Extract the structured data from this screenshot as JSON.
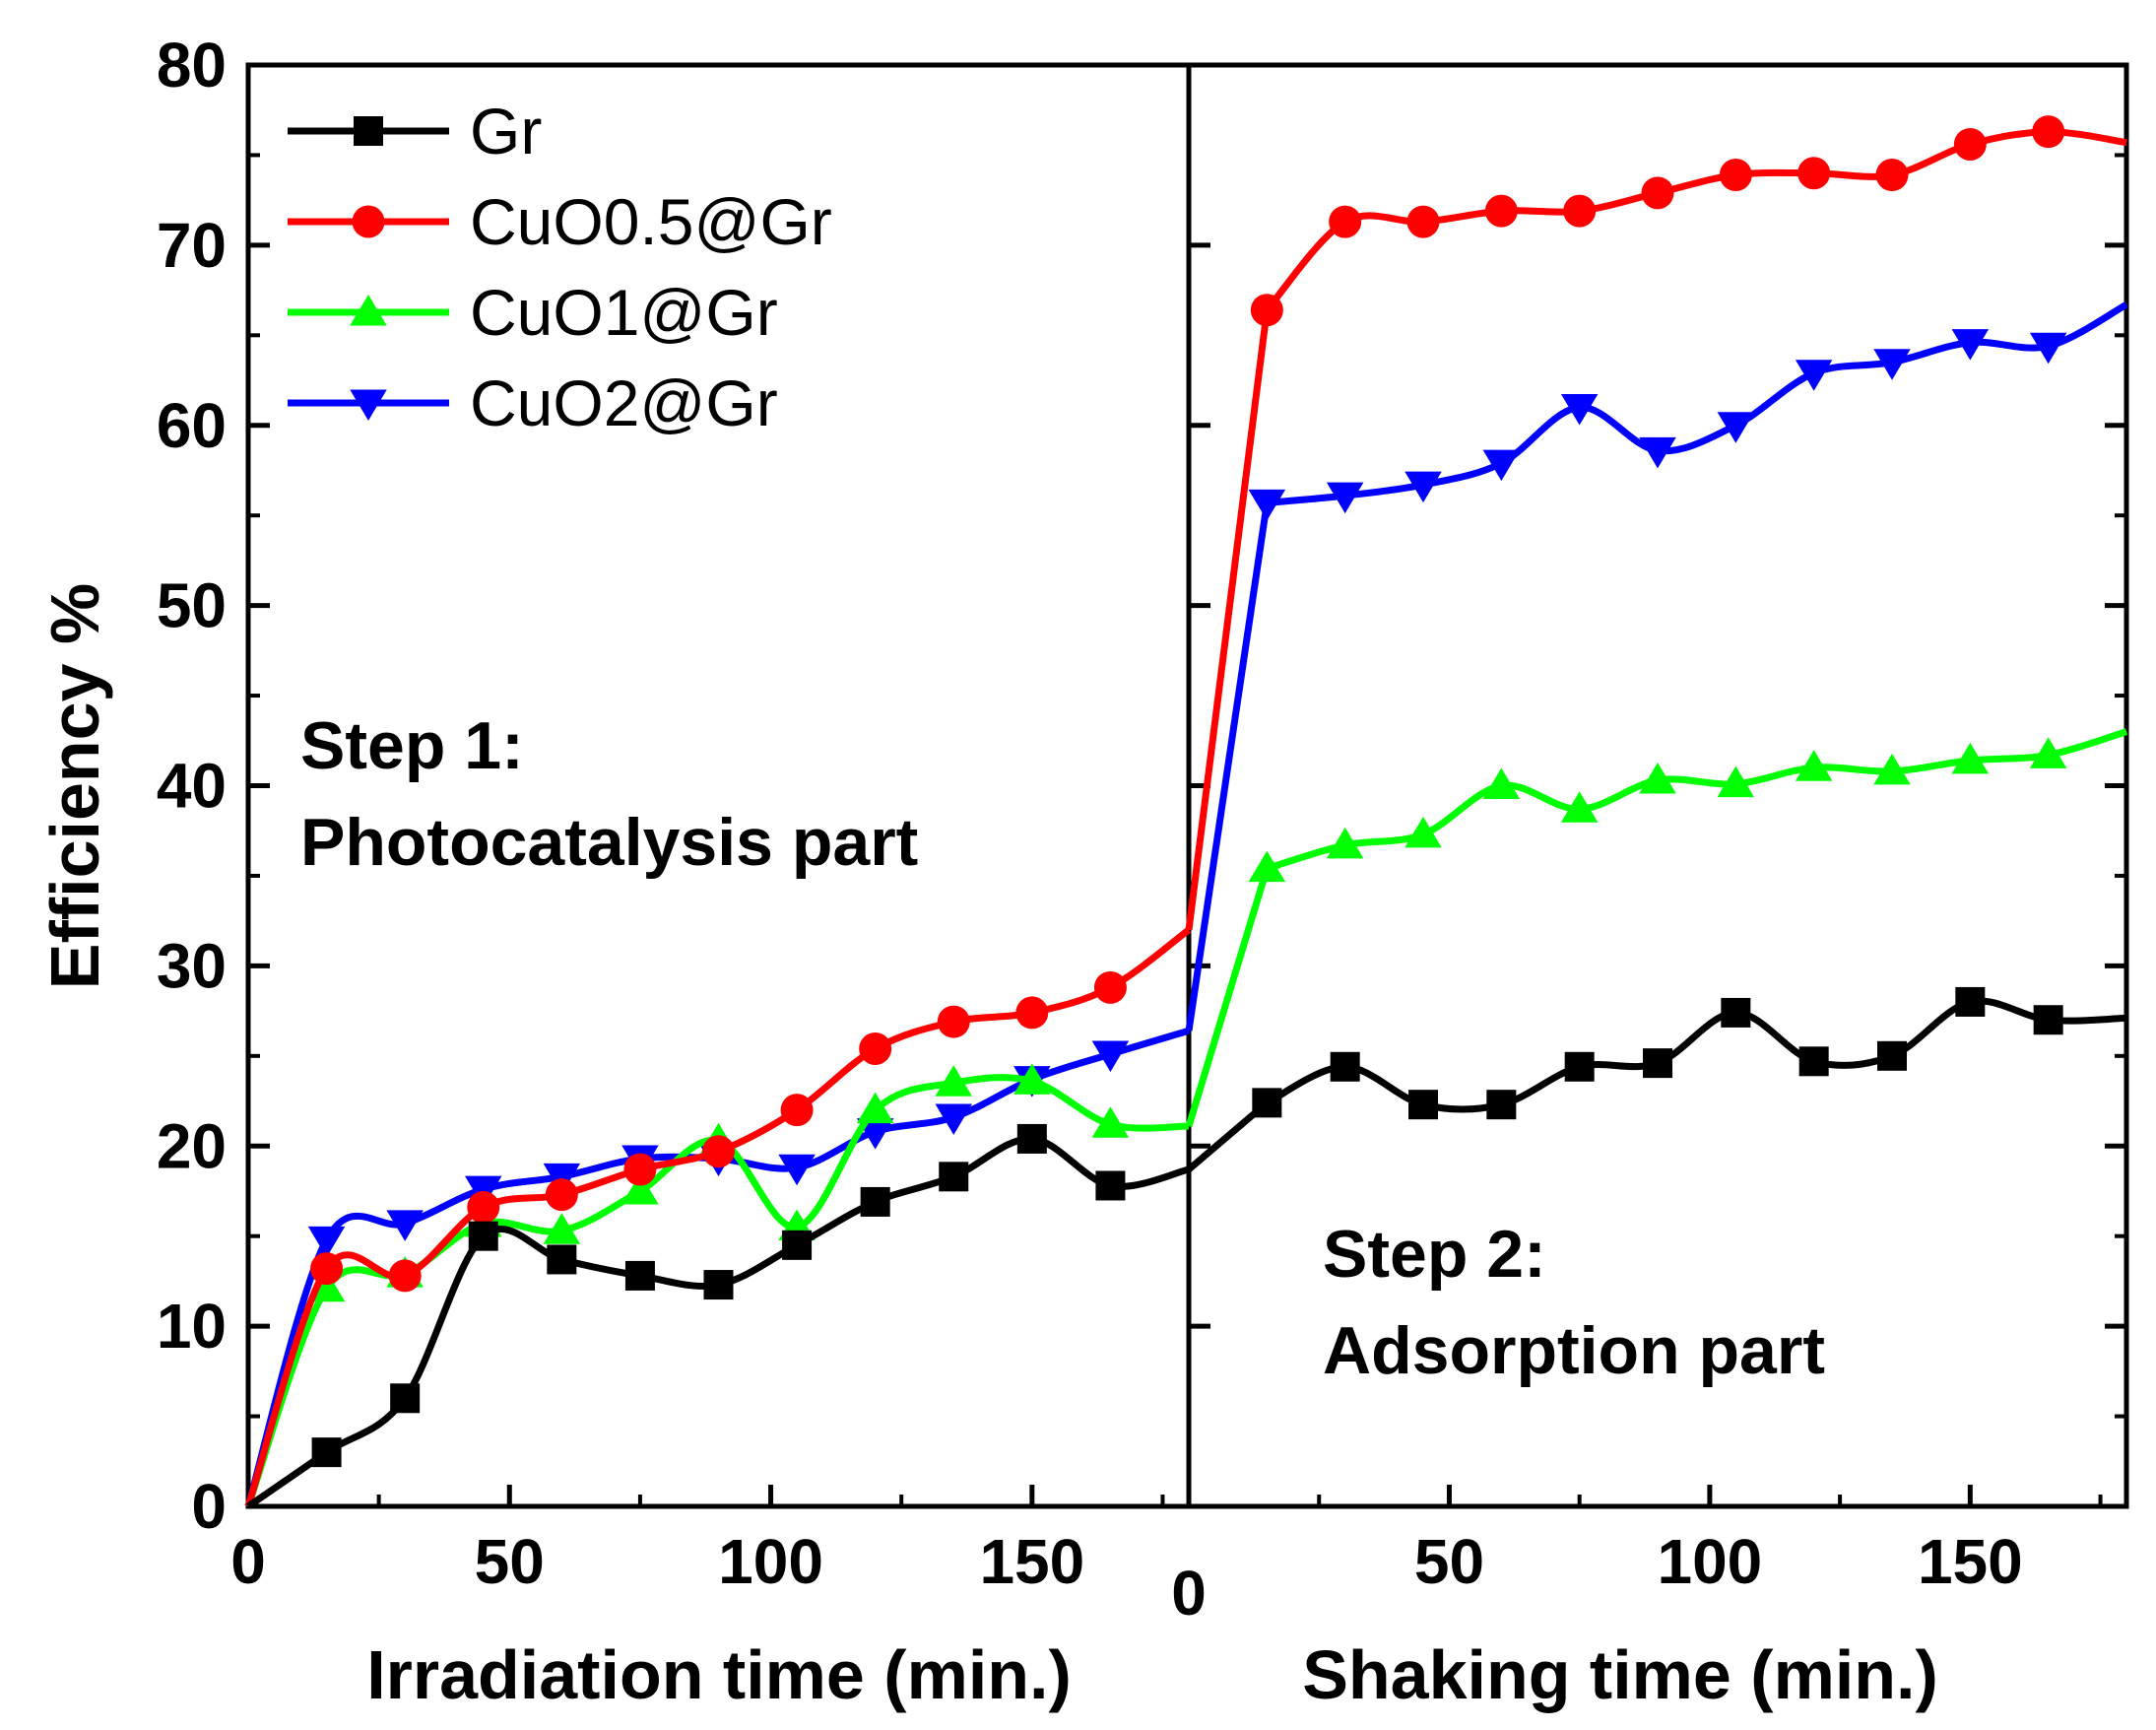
{
  "chart_data": {
    "type": "line",
    "ylabel": "Efficiency %",
    "ylim": [
      0,
      80
    ],
    "yticks": [
      0,
      10,
      20,
      30,
      40,
      50,
      60,
      70,
      80
    ],
    "panels": [
      {
        "xlabel": "Irradiation time (min.)",
        "xlim": [
          0,
          180
        ],
        "xticks": [
          0,
          50,
          100,
          150
        ],
        "annotation": [
          "Step 1:",
          "Photocatalysis part"
        ],
        "x": [
          0,
          15,
          30,
          45,
          60,
          75,
          90,
          105,
          120,
          135,
          150,
          165,
          180
        ]
      },
      {
        "xlabel": "Shaking time (min.)",
        "xlim": [
          0,
          180
        ],
        "xticks": [
          0,
          50,
          100,
          150
        ],
        "annotation": [
          "Step 2:",
          "Adsorption part"
        ],
        "x": [
          0,
          15,
          30,
          45,
          60,
          75,
          90,
          105,
          120,
          135,
          150,
          165,
          180
        ]
      }
    ],
    "series": [
      {
        "name": "Gr",
        "color": "#000000",
        "marker": "square",
        "panel1": [
          0,
          3,
          6,
          15,
          13.7,
          12.8,
          12.3,
          14.5,
          16.9,
          18.3,
          20.4,
          17.8,
          18.7
        ],
        "panel2": [
          18.7,
          22.4,
          24.4,
          22.3,
          22.3,
          24.4,
          24.6,
          27.4,
          24.7,
          25.0,
          28.0,
          27.0,
          27.1
        ]
      },
      {
        "name": "CuO0.5@Gr",
        "color": "#ff0000",
        "marker": "circle",
        "panel1": [
          0,
          13.2,
          12.8,
          16.6,
          17.3,
          18.7,
          19.7,
          22.0,
          25.4,
          26.9,
          27.4,
          28.8,
          32.0
        ],
        "panel2": [
          32.0,
          66.4,
          71.3,
          71.3,
          71.9,
          71.9,
          72.9,
          73.9,
          74.0,
          73.9,
          75.6,
          76.3,
          75.7
        ]
      },
      {
        "name": "CuO1@Gr",
        "color": "#00ff00",
        "marker": "triangle-up",
        "panel1": [
          0,
          12.1,
          12.9,
          15.7,
          15.3,
          17.5,
          20.3,
          15.5,
          22.0,
          23.5,
          23.6,
          21.2,
          21.1
        ],
        "panel2": [
          21.1,
          35.4,
          36.7,
          37.3,
          40.0,
          38.7,
          40.3,
          40.1,
          41.0,
          40.8,
          41.4,
          41.7,
          43.0
        ]
      },
      {
        "name": "CuO2@Gr",
        "color": "#0000ff",
        "marker": "triangle-down",
        "panel1": [
          0,
          14.8,
          15.7,
          17.6,
          18.3,
          19.3,
          19.3,
          18.8,
          20.8,
          21.6,
          23.7,
          25.1,
          26.4
        ],
        "panel2": [
          26.4,
          55.7,
          56.1,
          56.7,
          57.9,
          61.0,
          58.6,
          60.0,
          62.9,
          63.5,
          64.6,
          64.4,
          66.7
        ]
      }
    ]
  }
}
